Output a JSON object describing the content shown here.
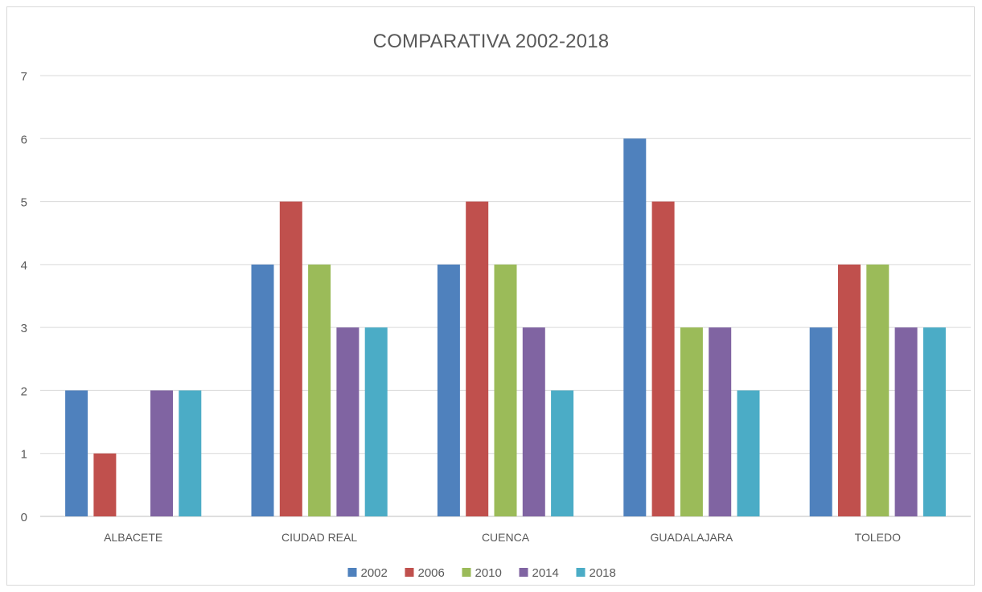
{
  "chart_data": {
    "type": "bar",
    "title": "COMPARATIVA 2002-2018",
    "categories": [
      "ALBACETE",
      "CIUDAD REAL",
      "CUENCA",
      "GUADALAJARA",
      "TOLEDO"
    ],
    "series": [
      {
        "name": "2002",
        "color": "#4f81bd",
        "values": [
          2,
          4,
          4,
          6,
          3
        ]
      },
      {
        "name": "2006",
        "color": "#c0504d",
        "values": [
          1,
          5,
          5,
          5,
          4
        ]
      },
      {
        "name": "2010",
        "color": "#9bbb59",
        "values": [
          0,
          4,
          4,
          3,
          4
        ]
      },
      {
        "name": "2014",
        "color": "#8064a2",
        "values": [
          2,
          3,
          3,
          3,
          3
        ]
      },
      {
        "name": "2018",
        "color": "#4bacc6",
        "values": [
          2,
          3,
          2,
          2,
          3
        ]
      }
    ],
    "ylim": [
      0,
      7
    ],
    "yticks": [
      "0",
      "1",
      "2",
      "3",
      "4",
      "5",
      "6",
      "7"
    ],
    "grid": true,
    "legend_position": "bottom"
  }
}
